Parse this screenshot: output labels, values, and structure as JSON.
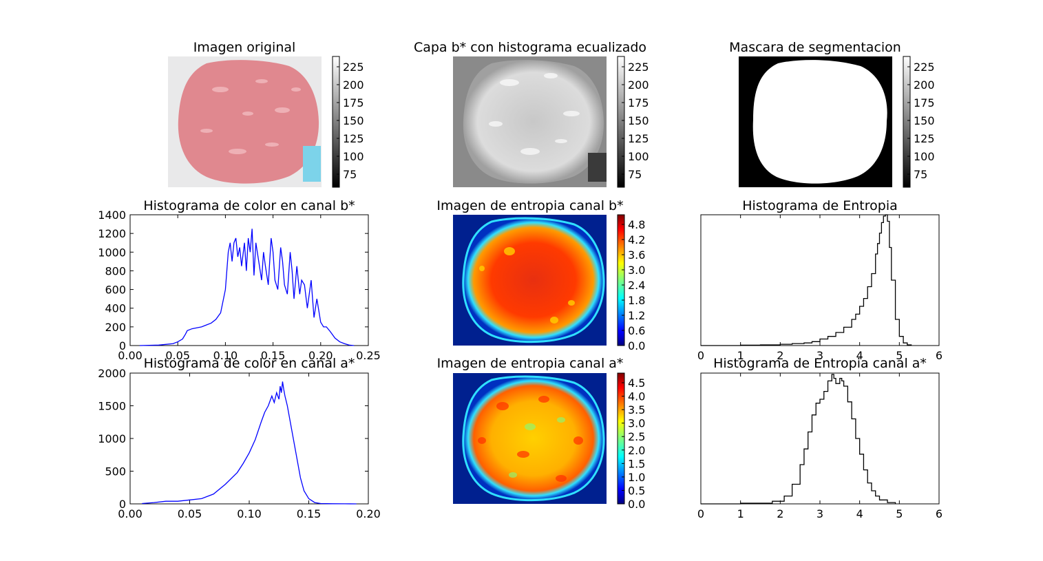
{
  "panels": {
    "original": {
      "title": "Imagen original",
      "colorbar_ticks": [
        "225",
        "200",
        "175",
        "150",
        "125",
        "100",
        "75"
      ]
    },
    "b_layer": {
      "title": "Capa b* con histograma ecualizado",
      "colorbar_ticks": [
        "225",
        "200",
        "175",
        "150",
        "125",
        "100",
        "75"
      ]
    },
    "mask": {
      "title": "Mascara de segmentacion",
      "colorbar_ticks": [
        "225",
        "200",
        "175",
        "150",
        "125",
        "100",
        "75"
      ]
    },
    "entropy_b": {
      "title": "Imagen de entropia canal b*",
      "colorbar_ticks": [
        "4.8",
        "4.2",
        "3.6",
        "3.0",
        "2.4",
        "1.8",
        "1.2",
        "0.6",
        "0.0"
      ]
    },
    "entropy_a": {
      "title": "Imagen de entropia canal a*",
      "colorbar_ticks": [
        "4.5",
        "4.0",
        "3.5",
        "3.0",
        "2.5",
        "2.0",
        "1.5",
        "1.0",
        "0.5",
        "0.0"
      ]
    }
  },
  "colors": {
    "line": "#0000ff",
    "step": "#000000",
    "tissue": "#e0888f",
    "background": "#e9e9ea",
    "label": "#7cd3ea"
  },
  "chart_data": [
    {
      "id": "hist_b",
      "type": "line",
      "title": "Histograma de color en canal b*",
      "xlabel": "",
      "ylabel": "",
      "xlim": [
        0.0,
        0.25
      ],
      "ylim": [
        0,
        1400
      ],
      "xticks": [
        "0.00",
        "0.05",
        "0.10",
        "0.15",
        "0.20",
        "0.25"
      ],
      "yticks": [
        "0",
        "200",
        "400",
        "600",
        "800",
        "1000",
        "1200",
        "1400"
      ],
      "series": [
        {
          "color": "#0000ff",
          "x": [
            0.01,
            0.03,
            0.045,
            0.05,
            0.055,
            0.058,
            0.06,
            0.065,
            0.07,
            0.075,
            0.08,
            0.085,
            0.09,
            0.095,
            0.1,
            0.103,
            0.105,
            0.107,
            0.109,
            0.111,
            0.113,
            0.115,
            0.117,
            0.12,
            0.122,
            0.124,
            0.126,
            0.128,
            0.13,
            0.132,
            0.135,
            0.138,
            0.14,
            0.142,
            0.145,
            0.148,
            0.15,
            0.152,
            0.155,
            0.158,
            0.16,
            0.162,
            0.165,
            0.168,
            0.17,
            0.172,
            0.175,
            0.178,
            0.18,
            0.183,
            0.186,
            0.19,
            0.193,
            0.196,
            0.2,
            0.203,
            0.206,
            0.21,
            0.215,
            0.22,
            0.225,
            0.23,
            0.235
          ],
          "y": [
            0,
            5,
            20,
            40,
            70,
            120,
            160,
            180,
            190,
            200,
            220,
            240,
            280,
            350,
            600,
            1000,
            1100,
            900,
            1100,
            1150,
            950,
            1050,
            850,
            1100,
            800,
            1150,
            1000,
            1250,
            750,
            1100,
            900,
            700,
            1000,
            850,
            650,
            1150,
            1000,
            700,
            600,
            1050,
            900,
            650,
            550,
            1000,
            800,
            500,
            850,
            550,
            700,
            650,
            400,
            700,
            300,
            500,
            250,
            200,
            200,
            150,
            80,
            40,
            20,
            5,
            0
          ]
        }
      ]
    },
    {
      "id": "hist_entropy_b",
      "type": "line",
      "title": "Histograma de Entropia",
      "xlabel": "",
      "ylabel": "",
      "xlim": [
        0,
        6
      ],
      "ylim": [
        0,
        1
      ],
      "xticks": [
        "0",
        "1",
        "2",
        "3",
        "4",
        "5",
        "6"
      ],
      "series": [
        {
          "color": "#000000",
          "x": [
            0,
            1,
            1.5,
            2,
            2.3,
            2.6,
            2.8,
            3.0,
            3.2,
            3.4,
            3.6,
            3.8,
            3.9,
            4.0,
            4.1,
            4.2,
            4.3,
            4.4,
            4.45,
            4.5,
            4.55,
            4.6,
            4.65,
            4.7,
            4.75,
            4.8,
            4.9,
            5.0,
            5.1,
            5.2,
            5.3
          ],
          "y": [
            0,
            0.003,
            0.005,
            0.01,
            0.015,
            0.02,
            0.03,
            0.05,
            0.07,
            0.1,
            0.14,
            0.2,
            0.24,
            0.3,
            0.36,
            0.45,
            0.55,
            0.7,
            0.78,
            0.86,
            0.94,
            0.99,
            1.0,
            0.95,
            0.75,
            0.5,
            0.2,
            0.07,
            0.02,
            0.005,
            0
          ]
        }
      ]
    },
    {
      "id": "hist_a",
      "type": "line",
      "title": "Histograma de color en canal a*",
      "xlabel": "",
      "ylabel": "",
      "xlim": [
        0.0,
        0.2
      ],
      "ylim": [
        0,
        2000
      ],
      "xticks": [
        "0.00",
        "0.05",
        "0.10",
        "0.15",
        "0.20"
      ],
      "yticks": [
        "0",
        "500",
        "1000",
        "1500",
        "2000"
      ],
      "series": [
        {
          "color": "#0000ff",
          "x": [
            0.01,
            0.02,
            0.03,
            0.04,
            0.05,
            0.06,
            0.07,
            0.08,
            0.09,
            0.095,
            0.1,
            0.105,
            0.11,
            0.113,
            0.116,
            0.119,
            0.121,
            0.123,
            0.125,
            0.126,
            0.127,
            0.128,
            0.129,
            0.13,
            0.132,
            0.134,
            0.137,
            0.14,
            0.143,
            0.146,
            0.15,
            0.155,
            0.16,
            0.17,
            0.18,
            0.19
          ],
          "y": [
            5,
            20,
            40,
            40,
            60,
            80,
            150,
            300,
            480,
            620,
            780,
            980,
            1250,
            1400,
            1500,
            1650,
            1550,
            1700,
            1600,
            1800,
            1700,
            1870,
            1750,
            1650,
            1500,
            1300,
            1000,
            700,
            400,
            200,
            80,
            20,
            5,
            2,
            1,
            0
          ]
        }
      ]
    },
    {
      "id": "hist_entropy_a",
      "type": "line",
      "title": "Histograma de Entropia canal a*",
      "xlabel": "",
      "ylabel": "",
      "xlim": [
        0,
        6
      ],
      "ylim": [
        0,
        1
      ],
      "xticks": [
        "0",
        "1",
        "2",
        "3",
        "4",
        "5",
        "6"
      ],
      "series": [
        {
          "color": "#000000",
          "x": [
            0,
            1,
            1.8,
            2.1,
            2.3,
            2.5,
            2.6,
            2.7,
            2.8,
            2.9,
            3.0,
            3.1,
            3.2,
            3.3,
            3.35,
            3.4,
            3.5,
            3.55,
            3.6,
            3.7,
            3.8,
            3.9,
            4.0,
            4.1,
            4.2,
            4.3,
            4.4,
            4.5,
            4.7,
            4.9
          ],
          "y": [
            0,
            0.005,
            0.02,
            0.06,
            0.15,
            0.3,
            0.42,
            0.55,
            0.68,
            0.77,
            0.8,
            0.86,
            0.94,
            0.99,
            0.96,
            0.92,
            0.96,
            0.94,
            0.9,
            0.78,
            0.65,
            0.5,
            0.38,
            0.26,
            0.16,
            0.1,
            0.06,
            0.03,
            0.01,
            0
          ]
        }
      ]
    }
  ]
}
